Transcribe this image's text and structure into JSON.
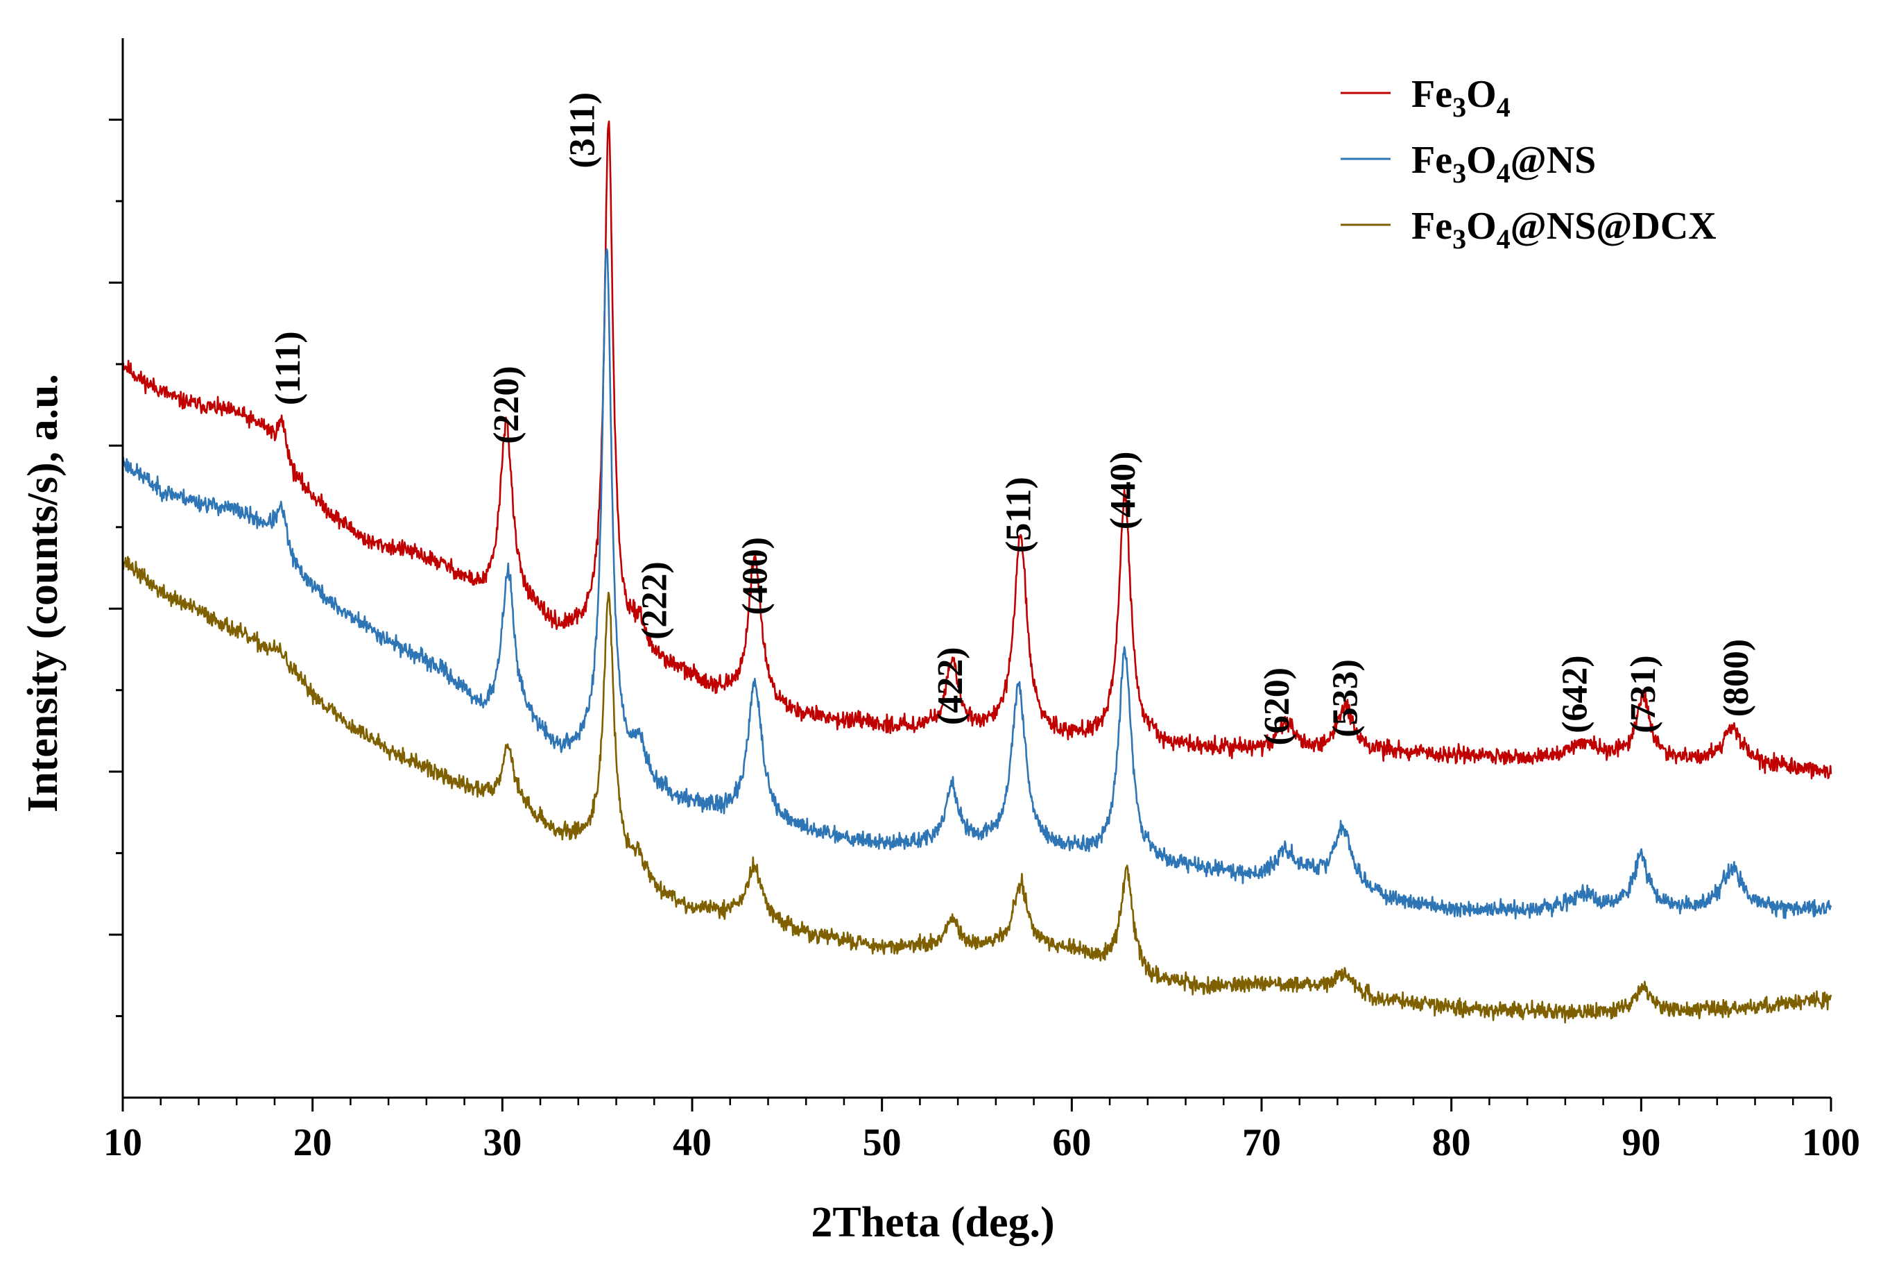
{
  "chart_data": {
    "type": "line",
    "title": "",
    "xlabel": "2Theta (deg.)",
    "ylabel": "Intensity (counts/s), a.u.",
    "xlim": [
      10,
      100
    ],
    "ylim": [
      0,
      13
    ],
    "y_tick_labels_shown": false,
    "x_ticks": [
      "10",
      "20",
      "30",
      "40",
      "50",
      "60",
      "70",
      "80",
      "90",
      "100"
    ],
    "legend": {
      "position": "top-right",
      "entries": [
        {
          "parts": [
            [
              "Fe",
              ""
            ],
            [
              "3",
              "sub"
            ],
            [
              "O",
              ""
            ],
            [
              "4",
              "sub"
            ]
          ]
        },
        {
          "parts": [
            [
              "Fe",
              ""
            ],
            [
              "3",
              "sub"
            ],
            [
              "O",
              ""
            ],
            [
              "4",
              "sub"
            ],
            [
              "@NS",
              ""
            ]
          ]
        },
        {
          "parts": [
            [
              "Fe",
              ""
            ],
            [
              "3",
              "sub"
            ],
            [
              "O",
              ""
            ],
            [
              "4",
              "sub"
            ],
            [
              "@NS@DCX",
              ""
            ]
          ]
        }
      ]
    },
    "series": [
      {
        "name": "Fe3O4",
        "color": "#c00000",
        "noise": 0.1,
        "seed": 11,
        "baseline": [
          [
            10,
            9.0
          ],
          [
            11,
            8.8
          ],
          [
            13,
            8.55
          ],
          [
            16,
            8.4
          ],
          [
            17.5,
            8.2
          ],
          [
            19,
            7.6
          ],
          [
            21,
            7.15
          ],
          [
            23,
            6.8
          ],
          [
            25,
            6.7
          ],
          [
            27,
            6.5
          ],
          [
            29,
            6.15
          ],
          [
            31,
            6.05
          ],
          [
            33,
            5.7
          ],
          [
            35,
            5.7
          ],
          [
            37,
            5.45
          ],
          [
            39,
            5.25
          ],
          [
            42,
            4.9
          ],
          [
            45,
            4.7
          ],
          [
            50,
            4.55
          ],
          [
            55,
            4.5
          ],
          [
            60,
            4.4
          ],
          [
            65,
            4.3
          ],
          [
            70,
            4.25
          ],
          [
            75,
            4.25
          ],
          [
            80,
            4.2
          ],
          [
            85,
            4.15
          ],
          [
            90,
            4.15
          ],
          [
            95,
            4.1
          ],
          [
            100,
            4.0
          ]
        ],
        "peaks": [
          [
            18.4,
            0.45,
            0.3
          ],
          [
            30.2,
            2.2,
            0.38
          ],
          [
            35.6,
            6.3,
            0.28
          ],
          [
            37.2,
            0.35,
            0.35
          ],
          [
            43.3,
            1.8,
            0.42
          ],
          [
            53.7,
            0.8,
            0.4
          ],
          [
            57.3,
            2.4,
            0.42
          ],
          [
            62.8,
            3.0,
            0.38
          ],
          [
            71.3,
            0.35,
            0.5
          ],
          [
            74.4,
            0.55,
            0.5
          ],
          [
            87.0,
            0.2,
            0.8
          ],
          [
            90.1,
            0.75,
            0.45
          ],
          [
            94.8,
            0.45,
            0.6
          ]
        ]
      },
      {
        "name": "Fe3O4@NS",
        "color": "#2e75b6",
        "noise": 0.1,
        "seed": 23,
        "baseline": [
          [
            10,
            7.8
          ],
          [
            12,
            7.45
          ],
          [
            14,
            7.3
          ],
          [
            16,
            7.2
          ],
          [
            18,
            6.95
          ],
          [
            19,
            6.5
          ],
          [
            21,
            6.05
          ],
          [
            24,
            5.6
          ],
          [
            27,
            5.2
          ],
          [
            29,
            4.7
          ],
          [
            31,
            4.65
          ],
          [
            33,
            4.2
          ],
          [
            35,
            4.2
          ],
          [
            37,
            3.9
          ],
          [
            39,
            3.65
          ],
          [
            42,
            3.45
          ],
          [
            45,
            3.3
          ],
          [
            50,
            3.1
          ],
          [
            55,
            3.1
          ],
          [
            60,
            3.0
          ],
          [
            65,
            2.85
          ],
          [
            70,
            2.7
          ],
          [
            72,
            2.75
          ],
          [
            76,
            2.45
          ],
          [
            80,
            2.3
          ],
          [
            85,
            2.3
          ],
          [
            90,
            2.3
          ],
          [
            95,
            2.3
          ],
          [
            100,
            2.3
          ]
        ],
        "peaks": [
          [
            18.4,
            0.45,
            0.3
          ],
          [
            30.3,
            1.8,
            0.38
          ],
          [
            35.5,
            6.3,
            0.3
          ],
          [
            37.2,
            0.4,
            0.4
          ],
          [
            43.3,
            1.7,
            0.45
          ],
          [
            53.7,
            0.7,
            0.4
          ],
          [
            57.2,
            2.0,
            0.45
          ],
          [
            62.8,
            2.6,
            0.4
          ],
          [
            71.2,
            0.3,
            0.5
          ],
          [
            74.3,
            0.7,
            0.6
          ],
          [
            87.0,
            0.2,
            0.8
          ],
          [
            90.0,
            0.65,
            0.45
          ],
          [
            94.8,
            0.5,
            0.7
          ]
        ]
      },
      {
        "name": "Fe3O4@NS@DCX",
        "color": "#7f6000",
        "noise": 0.1,
        "seed": 37,
        "baseline": [
          [
            10,
            6.6
          ],
          [
            12,
            6.2
          ],
          [
            15,
            5.85
          ],
          [
            18,
            5.45
          ],
          [
            20,
            4.95
          ],
          [
            22,
            4.55
          ],
          [
            25,
            4.15
          ],
          [
            28,
            3.8
          ],
          [
            31,
            3.55
          ],
          [
            33,
            3.2
          ],
          [
            35,
            3.1
          ],
          [
            37,
            2.65
          ],
          [
            40,
            2.3
          ],
          [
            43,
            2.25
          ],
          [
            46,
            2.0
          ],
          [
            50,
            1.85
          ],
          [
            55,
            1.85
          ],
          [
            60,
            1.8
          ],
          [
            64,
            1.45
          ],
          [
            67,
            1.35
          ],
          [
            70,
            1.4
          ],
          [
            73,
            1.35
          ],
          [
            76,
            1.2
          ],
          [
            80,
            1.1
          ],
          [
            85,
            1.05
          ],
          [
            90,
            1.05
          ],
          [
            95,
            1.1
          ],
          [
            100,
            1.2
          ]
        ],
        "peaks": [
          [
            18.4,
            0.1,
            0.4
          ],
          [
            30.3,
            0.7,
            0.38
          ],
          [
            35.6,
            3.2,
            0.32
          ],
          [
            37.2,
            0.3,
            0.4
          ],
          [
            43.3,
            0.6,
            0.45
          ],
          [
            53.7,
            0.3,
            0.4
          ],
          [
            57.3,
            0.8,
            0.45
          ],
          [
            62.9,
            1.2,
            0.4
          ],
          [
            74.4,
            0.25,
            0.6
          ],
          [
            90.1,
            0.3,
            0.5
          ]
        ]
      }
    ],
    "annotations": [
      {
        "text": "(111)",
        "x": 18.7,
        "y": 8.95
      },
      {
        "text": "(220)",
        "x": 30.2,
        "y": 8.5
      },
      {
        "text": "(311)",
        "x": 34.2,
        "y": 11.87
      },
      {
        "text": "(222)",
        "x": 38.0,
        "y": 6.1
      },
      {
        "text": "(400)",
        "x": 43.3,
        "y": 6.4
      },
      {
        "text": "(422)",
        "x": 53.6,
        "y": 5.05
      },
      {
        "text": "(511)",
        "x": 57.2,
        "y": 7.15
      },
      {
        "text": "(440)",
        "x": 62.7,
        "y": 7.45
      },
      {
        "text": "(620)",
        "x": 70.8,
        "y": 4.8
      },
      {
        "text": "(533)",
        "x": 74.4,
        "y": 4.9
      },
      {
        "text": "(642)",
        "x": 86.5,
        "y": 4.95
      },
      {
        "text": "(731)",
        "x": 90.1,
        "y": 4.95
      },
      {
        "text": "(800)",
        "x": 95.0,
        "y": 5.15
      }
    ]
  }
}
